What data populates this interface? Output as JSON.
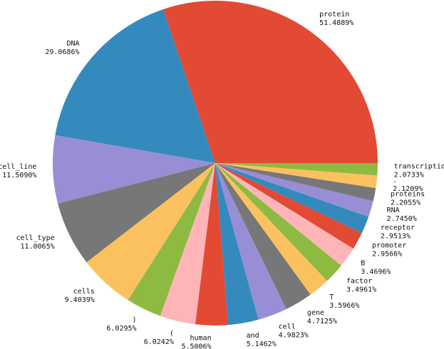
{
  "chart_data": {
    "type": "pie",
    "title": "",
    "start_angle_deg": 0,
    "direction": "counterclockwise",
    "slices": [
      {
        "label": "protein",
        "pct": "51.4889%",
        "value": 51.4889,
        "color": "#E24A33"
      },
      {
        "label": "DNA",
        "pct": "29.0686%",
        "value": 29.0686,
        "color": "#348ABD"
      },
      {
        "label": "cell_line",
        "pct": "11.5090%",
        "value": 11.509,
        "color": "#988ED5"
      },
      {
        "label": "cell_type",
        "pct": "11.0065%",
        "value": 11.0065,
        "color": "#777777"
      },
      {
        "label": "cells",
        "pct": "9.4039%",
        "value": 9.4039,
        "color": "#FBC15E"
      },
      {
        "label": ")",
        "pct": "6.0295%",
        "value": 6.0295,
        "color": "#8EBA42"
      },
      {
        "label": "(",
        "pct": "6.0242%",
        "value": 6.0242,
        "color": "#FFB5B8"
      },
      {
        "label": "human",
        "pct": "5.5006%",
        "value": 5.5006,
        "color": "#E24A33"
      },
      {
        "label": "and",
        "pct": "5.1462%",
        "value": 5.1462,
        "color": "#348ABD"
      },
      {
        "label": "cell",
        "pct": "4.9823%",
        "value": 4.9823,
        "color": "#988ED5"
      },
      {
        "label": "gene",
        "pct": "4.7125%",
        "value": 4.7125,
        "color": "#777777"
      },
      {
        "label": "T",
        "pct": "3.5966%",
        "value": 3.5966,
        "color": "#FBC15E"
      },
      {
        "label": "factor",
        "pct": "3.4961%",
        "value": 3.4961,
        "color": "#8EBA42"
      },
      {
        "label": "B",
        "pct": "3.4696%",
        "value": 3.4696,
        "color": "#FFB5B8"
      },
      {
        "label": "promoter",
        "pct": "2.9566%",
        "value": 2.9566,
        "color": "#E24A33"
      },
      {
        "label": "receptor",
        "pct": "2.9513%",
        "value": 2.9513,
        "color": "#348ABD"
      },
      {
        "label": "RNA",
        "pct": "2.7450%",
        "value": 2.745,
        "color": "#988ED5"
      },
      {
        "label": "proteins",
        "pct": "2.2055%",
        "value": 2.2055,
        "color": "#777777"
      },
      {
        "label": ".",
        "pct": "2.1209%",
        "value": 2.1209,
        "color": "#FBC15E"
      },
      {
        "label": "transcription",
        "pct": "2.0733%",
        "value": 2.0733,
        "color": "#8EBA42"
      }
    ]
  }
}
